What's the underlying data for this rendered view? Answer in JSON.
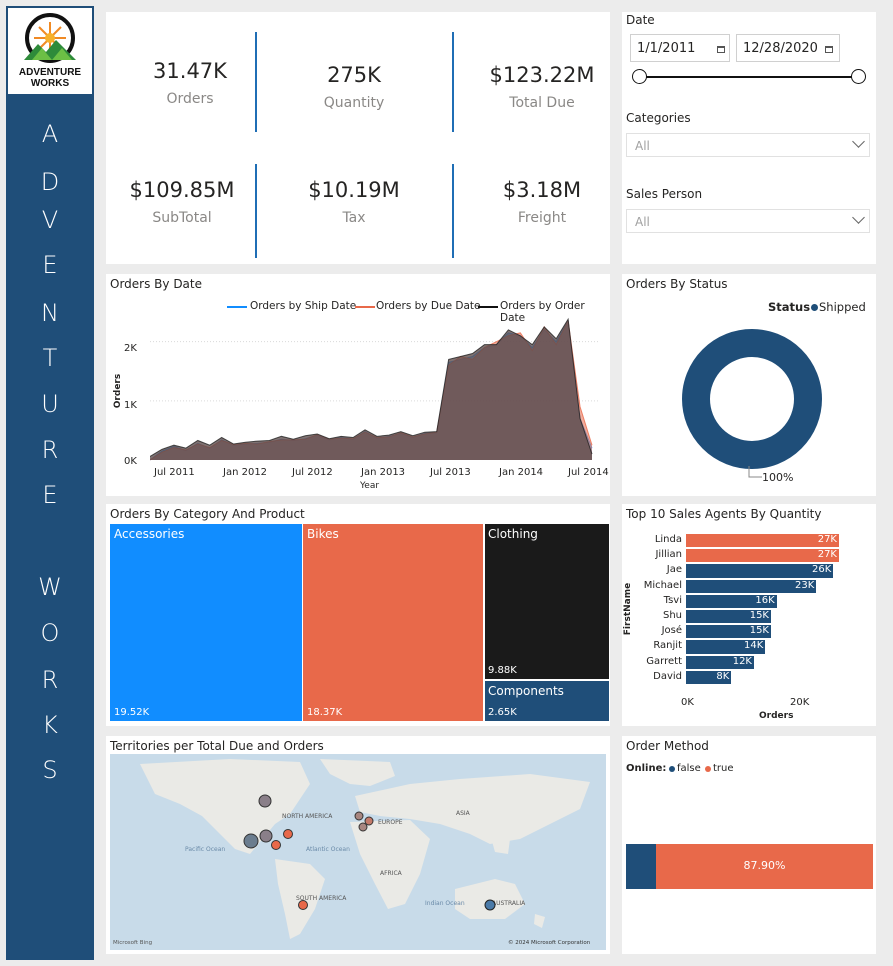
{
  "sidebar": {
    "logo_line1": "ADVENTURE",
    "logo_line2": "WORKS",
    "letters": [
      "A",
      "D",
      "V",
      "E",
      "N",
      "T",
      "U",
      "R",
      "E",
      "W",
      "O",
      "R",
      "K",
      "S"
    ]
  },
  "kpis": [
    {
      "value": "31.47K",
      "label": "Orders"
    },
    {
      "value": "275K",
      "label": "Quantity"
    },
    {
      "value": "$123.22M",
      "label": "Total Due"
    },
    {
      "value": "$109.85M",
      "label": "SubTotal"
    },
    {
      "value": "$10.19M",
      "label": "Tax"
    },
    {
      "value": "$3.18M",
      "label": "Freight"
    }
  ],
  "slicers": {
    "date_label": "Date",
    "date_start": "1/1/2011",
    "date_end": "12/28/2020",
    "categories_label": "Categories",
    "categories_value": "All",
    "salesperson_label": "Sales Person",
    "salesperson_value": "All"
  },
  "orders_by_date": {
    "title": "Orders By Date",
    "legend": [
      "Orders by Ship Date",
      "Orders by Due Date",
      "Orders by Order Date"
    ],
    "ylabel": "Orders",
    "xlabel": "Year",
    "yticks": [
      "2K",
      "1K",
      "0K"
    ],
    "xticks": [
      "Jul 2011",
      "Jan 2012",
      "Jul 2012",
      "Jan 2013",
      "Jul 2013",
      "Jan 2014",
      "Jul 2014"
    ]
  },
  "orders_by_status": {
    "title": "Orders By Status",
    "legend_title": "Status",
    "legend_item": "Shipped",
    "pct_label": "100%"
  },
  "category": {
    "title": "Orders By Category And Product",
    "items": [
      {
        "name": "Accessories",
        "value": "19.52K"
      },
      {
        "name": "Bikes",
        "value": "18.37K"
      },
      {
        "name": "Clothing",
        "value": "9.88K"
      },
      {
        "name": "Components",
        "value": "2.65K"
      }
    ]
  },
  "agents": {
    "title": "Top 10 Sales Agents By Quantity",
    "ylabel": "FirstName",
    "xlabel": "Orders",
    "xticks": [
      "0K",
      "20K"
    ]
  },
  "territories": {
    "title": "Territories per Total Due and Orders",
    "labels": [
      "NORTH AMERICA",
      "EUROPE",
      "ASIA",
      "Pacific Ocean",
      "Atlantic Ocean",
      "AFRICA",
      "SOUTH AMERICA",
      "Indian Ocean",
      "AUSTRALIA"
    ],
    "bing": "Microsoft Bing",
    "copyright": "© 2024 Microsoft Corporation"
  },
  "order_method": {
    "title": "Order Method",
    "legend_title": "Online:",
    "legend_false": "false",
    "legend_true": "true",
    "pct_label": "87.90%"
  },
  "colors": {
    "navy": "#1f4e79",
    "orange": "#e8694a",
    "sky": "#118dff",
    "black": "#1a1a1a",
    "brown": "#6b5655"
  },
  "chart_data": [
    {
      "type": "area",
      "title": "Orders By Date",
      "xlabel": "Year",
      "ylabel": "Orders",
      "ylim": [
        0,
        2400
      ],
      "x": [
        "2011-06",
        "2011-07",
        "2011-08",
        "2011-09",
        "2011-10",
        "2011-11",
        "2011-12",
        "2012-01",
        "2012-02",
        "2012-03",
        "2012-04",
        "2012-05",
        "2012-06",
        "2012-07",
        "2012-08",
        "2012-09",
        "2012-10",
        "2012-11",
        "2012-12",
        "2013-01",
        "2013-02",
        "2013-03",
        "2013-04",
        "2013-05",
        "2013-06",
        "2013-07",
        "2013-08",
        "2013-09",
        "2013-10",
        "2013-11",
        "2013-12",
        "2014-01",
        "2014-02",
        "2014-03",
        "2014-04",
        "2014-05",
        "2014-06",
        "2014-07"
      ],
      "series": [
        {
          "name": "Orders by Ship Date",
          "values": [
            0,
            150,
            230,
            160,
            280,
            200,
            340,
            250,
            270,
            280,
            300,
            350,
            330,
            360,
            420,
            340,
            380,
            350,
            480,
            370,
            400,
            450,
            380,
            450,
            460,
            1650,
            1700,
            1750,
            1900,
            1950,
            2150,
            2100,
            1900,
            2200,
            2000,
            2350,
            700,
            200
          ]
        },
        {
          "name": "Orders by Due Date",
          "values": [
            0,
            130,
            210,
            170,
            270,
            210,
            330,
            260,
            280,
            270,
            310,
            340,
            340,
            350,
            430,
            350,
            370,
            360,
            470,
            380,
            390,
            460,
            390,
            440,
            470,
            1600,
            1750,
            1700,
            1900,
            2000,
            2100,
            2150,
            1850,
            2250,
            1950,
            2350,
            900,
            250
          ]
        },
        {
          "name": "Orders by Order Date",
          "values": [
            60,
            180,
            250,
            200,
            330,
            250,
            380,
            270,
            300,
            320,
            330,
            400,
            350,
            410,
            440,
            360,
            400,
            380,
            510,
            400,
            420,
            480,
            410,
            470,
            480,
            1700,
            1750,
            1800,
            1950,
            1950,
            2200,
            2100,
            1950,
            2250,
            2050,
            2380,
            700,
            100
          ]
        }
      ]
    },
    {
      "type": "pie",
      "title": "Orders By Status",
      "categories": [
        "Shipped"
      ],
      "values": [
        100
      ]
    },
    {
      "type": "bar",
      "title": "Orders By Category And Product",
      "categories": [
        "Accessories",
        "Bikes",
        "Clothing",
        "Components"
      ],
      "values": [
        19520,
        18370,
        9880,
        2650
      ]
    },
    {
      "type": "bar",
      "title": "Top 10 Sales Agents By Quantity",
      "categories": [
        "Linda",
        "Jillian",
        "Jae",
        "Michael",
        "Tsvi",
        "Shu",
        "José",
        "Ranjit",
        "Garrett",
        "David"
      ],
      "values": [
        27,
        27,
        26,
        23,
        16,
        15,
        15,
        14,
        12,
        8
      ],
      "labels": [
        "27K",
        "27K",
        "26K",
        "23K",
        "16K",
        "15K",
        "15K",
        "14K",
        "12K",
        "8K"
      ],
      "highlight": [
        true,
        true,
        false,
        false,
        false,
        false,
        false,
        false,
        false,
        false
      ],
      "xlim": [
        0,
        30
      ]
    },
    {
      "type": "bar",
      "title": "Order Method",
      "categories": [
        "false",
        "true"
      ],
      "values": [
        12.1,
        87.9
      ]
    }
  ]
}
